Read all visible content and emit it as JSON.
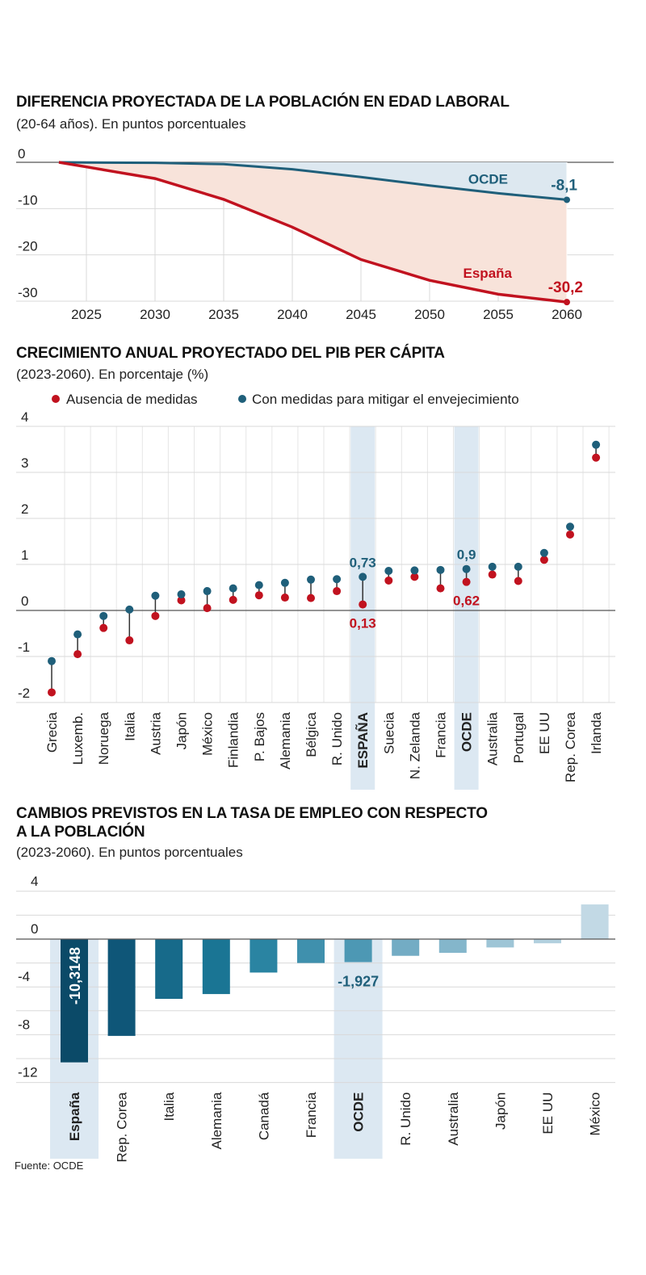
{
  "colors": {
    "oecd": "#1f5f7a",
    "spain": "#c1121f",
    "grid": "#d9d9d9",
    "axis": "#555555",
    "highlight": "#dce8f2",
    "spainFill": "#f8e3da",
    "oecdFill": "#dde8f0"
  },
  "chart_data": [
    {
      "type": "line",
      "title": "DIFERENCIA PROYECTADA DE LA POBLACIÓN EN EDAD LABORAL",
      "subtitle": "(20-64 años). En puntos porcentuales",
      "xlabel": "",
      "ylabel": "",
      "xlim": [
        2023,
        2060
      ],
      "ylim": [
        -30,
        0
      ],
      "x_ticks": [
        2025,
        2030,
        2035,
        2040,
        2045,
        2050,
        2055,
        2060
      ],
      "y_ticks": [
        0,
        -10,
        -20,
        -30
      ],
      "series": [
        {
          "name": "OCDE",
          "label_value": "-8,1",
          "x": [
            2023,
            2025,
            2030,
            2035,
            2040,
            2045,
            2050,
            2055,
            2060
          ],
          "values": [
            0,
            -0.05,
            -0.1,
            -0.4,
            -1.5,
            -3.2,
            -5.0,
            -6.7,
            -8.1
          ]
        },
        {
          "name": "España",
          "label_value": "-30,2",
          "x": [
            2023,
            2025,
            2030,
            2035,
            2040,
            2045,
            2050,
            2055,
            2060
          ],
          "values": [
            0,
            -1.0,
            -3.5,
            -8.0,
            -14.0,
            -21.0,
            -25.5,
            -28.5,
            -30.2
          ]
        }
      ]
    },
    {
      "type": "scatter",
      "title": "CRECIMIENTO ANUAL  PROYECTADO DEL PIB PER CÁPITA",
      "subtitle": "(2023-2060). En porcentaje (%)",
      "legend": [
        "Ausencia de medidas",
        "Con medidas para mitigar el envejecimiento"
      ],
      "ylim": [
        -2,
        4
      ],
      "y_ticks": [
        4,
        3,
        2,
        1,
        0,
        -1,
        -2
      ],
      "categories": [
        "Grecia",
        "Luxemb.",
        "Noruega",
        "Italia",
        "Austria",
        "Japón",
        "México",
        "Finlandia",
        "P. Bajos",
        "Alemania",
        "Bélgica",
        "R. Unido",
        "ESPAÑA",
        "Suecia",
        "N. Zelanda",
        "Francia",
        "OCDE",
        "Australia",
        "Portugal",
        "EE UU",
        "Rep. Corea",
        "Irlanda"
      ],
      "highlighted": [
        "ESPAÑA",
        "OCDE"
      ],
      "series": [
        {
          "name": "Ausencia de medidas",
          "values": [
            -1.78,
            -0.95,
            -0.38,
            -0.65,
            -0.12,
            0.22,
            0.05,
            0.23,
            0.33,
            0.28,
            0.27,
            0.42,
            0.13,
            0.65,
            0.73,
            0.48,
            0.62,
            0.78,
            0.64,
            1.1,
            1.65,
            3.32
          ]
        },
        {
          "name": "Con medidas para mitigar el envejecimiento",
          "values": [
            -1.1,
            -0.52,
            -0.12,
            0.02,
            0.32,
            0.35,
            0.42,
            0.48,
            0.55,
            0.6,
            0.67,
            0.68,
            0.73,
            0.86,
            0.87,
            0.88,
            0.9,
            0.95,
            0.95,
            1.25,
            1.82,
            3.6
          ]
        }
      ],
      "annotations": [
        {
          "category": "ESPAÑA",
          "with_measures": "0,73",
          "without_measures": "0,13"
        },
        {
          "category": "OCDE",
          "with_measures": "0,9",
          "without_measures": "0,62"
        }
      ]
    },
    {
      "type": "bar",
      "title_line1": "CAMBIOS PREVISTOS EN LA TASA DE EMPLEO CON RESPECTO",
      "title_line2": "A LA POBLACIÓN",
      "subtitle": "(2023-2060). En puntos porcentuales",
      "ylim": [
        -14,
        5
      ],
      "y_ticks": [
        4,
        0,
        -4,
        -8,
        -12
      ],
      "categories": [
        "España",
        "Rep. Corea",
        "Italia",
        "Alemania",
        "Canadá",
        "Francia",
        "OCDE",
        "R. Unido",
        "Australia",
        "Japón",
        "EE UU",
        "México"
      ],
      "highlighted": [
        "España",
        "OCDE"
      ],
      "values": [
        -10.3148,
        -8.1,
        -5.0,
        -4.6,
        -2.8,
        -2.0,
        -1.927,
        -1.4,
        -1.15,
        -0.7,
        -0.35,
        2.9
      ],
      "labels": {
        "España": "-10,3148",
        "OCDE": "-1,927"
      },
      "bar_colors": [
        "#0b4a68",
        "#0f5678",
        "#176a8a",
        "#1a7594",
        "#2a84a2",
        "#3f90ad",
        "#4d98b4",
        "#73acc4",
        "#84b6cb",
        "#9ec5d6",
        "#b2d0de",
        "#c2d9e5"
      ]
    }
  ],
  "source": "Fuente: OCDE"
}
